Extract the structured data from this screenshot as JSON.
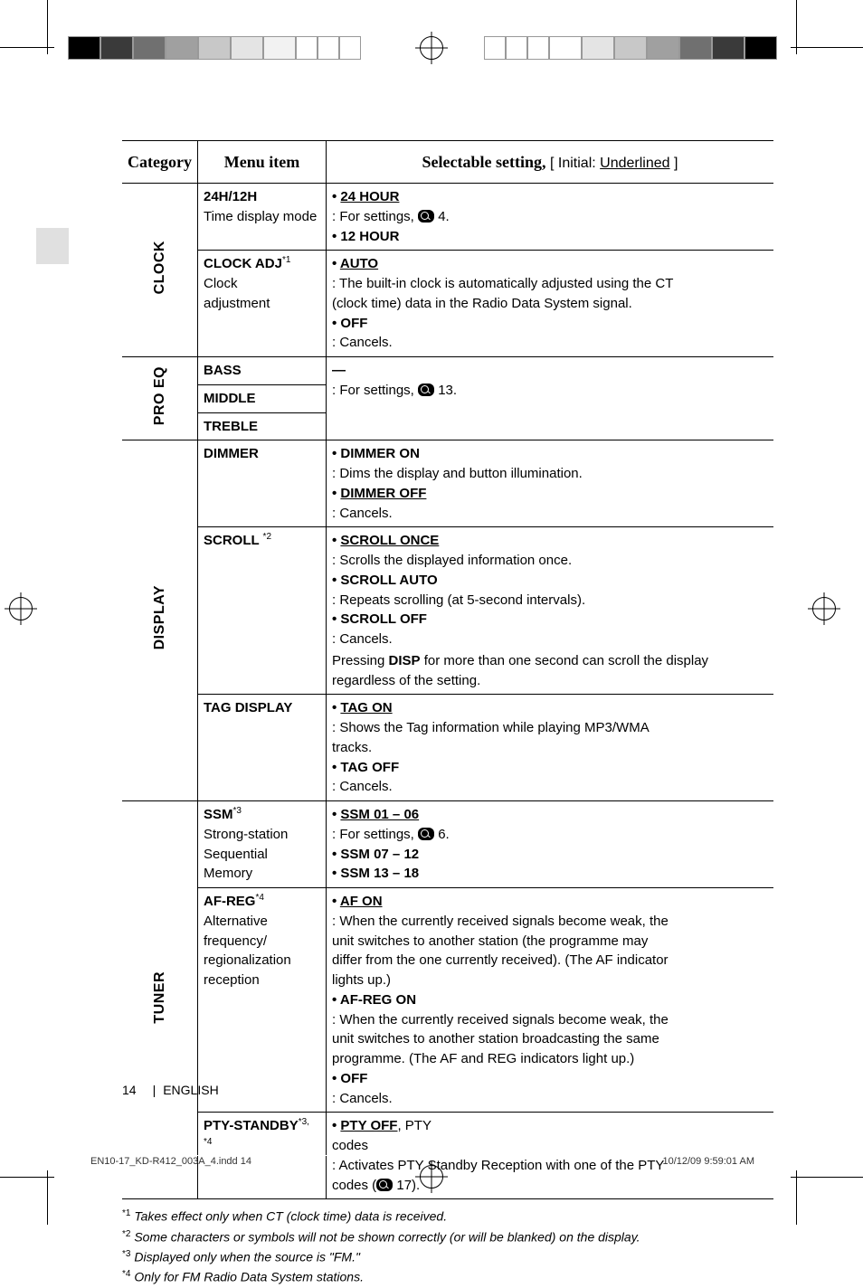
{
  "header": {
    "cat": "Category",
    "item": "Menu item",
    "setting_a": "Selectable setting, ",
    "setting_b": "[ Initial: ",
    "setting_c": "Underlined",
    "setting_d": " ]"
  },
  "clock": {
    "cat": "CLOCK",
    "r1": {
      "title": "24H/12H",
      "sub": "Time display mode",
      "opt1": "24 HOUR",
      "opt2": "12 HOUR",
      "desc1a": ":  For settings, ",
      "desc1b": " 4."
    },
    "r2": {
      "title": "CLOCK ADJ",
      "sup": "*1",
      "sub1": "Clock",
      "sub2": "adjustment",
      "opt1": "AUTO",
      "opt2": "OFF",
      "desc1": ":  The built-in clock is automatically adjusted using the CT (clock time) data in the Radio Data System signal.",
      "desc2": ":  Cancels."
    }
  },
  "proeq": {
    "cat": "PRO EQ",
    "r1": "BASS",
    "r2": "MIDDLE",
    "r3": "TREBLE",
    "dash": "—",
    "desc_a": ":  For settings, ",
    "desc_b": " 13."
  },
  "display": {
    "cat": "DISPLAY",
    "dimmer": {
      "title": "DIMMER",
      "opt1": "DIMMER ON",
      "opt2": "DIMMER OFF",
      "d1": ":  Dims the display and button illumination.",
      "d2": ":  Cancels."
    },
    "scroll": {
      "title": "SCROLL ",
      "sup": "*2",
      "opt1": "SCROLL ONCE",
      "d1": ":  Scrolls the displayed information once.",
      "opt2": "SCROLL AUTO",
      "d2": ":  Repeats scrolling (at 5-second intervals).",
      "opt3": "SCROLL OFF",
      "d3": ":  Cancels.",
      "note_a": "Pressing ",
      "note_b": "DISP",
      "note_c": " for more than one second can scroll the display regardless of the setting."
    },
    "tag": {
      "title": "TAG DISPLAY",
      "opt1": "TAG ON",
      "d1": ":  Shows the Tag information while playing MP3/WMA tracks.",
      "opt2": "TAG OFF",
      "d2": ":  Cancels."
    }
  },
  "tuner": {
    "cat": "TUNER",
    "ssm": {
      "title": "SSM",
      "sup": "*3",
      "sub": "Strong-station Sequential Memory",
      "opt1": "SSM 01 – 06",
      "opt2": "SSM 07 – 12",
      "opt3": "SSM 13 – 18",
      "desc_a": ":  For settings, ",
      "desc_b": " 6."
    },
    "af": {
      "title": "AF-REG",
      "sup": "*4",
      "sub": "Alternative frequency/ regionalization reception",
      "opt1": "AF ON",
      "d1": ":  When the currently received signals become weak, the unit switches to another station (the programme may differ from the one currently received). (The AF indicator lights up.)",
      "opt2": "AF-REG ON",
      "d2": ":  When the currently received signals become weak, the unit switches to another station broadcasting the same programme. (The AF and REG indicators light up.)",
      "opt3": "OFF",
      "d3": ":  Cancels."
    },
    "pty": {
      "title": "PTY-STANDBY",
      "sup": "*3, *4",
      "opt1": "PTY OFF",
      "opt1b": ", PTY codes",
      "d_a": ":  Activates PTY Standby Reception with one of the PTY codes (",
      "d_b": " 17)."
    }
  },
  "footnotes": {
    "f1": "Takes effect only when CT (clock time) data is received.",
    "f2": "Some characters or symbols will not be shown correctly (or will be blanked) on the display.",
    "f3": "Displayed only when the source is \"FM.\"",
    "f4": "Only for FM Radio Data System stations."
  },
  "pagenum": {
    "n": "14",
    "lang": "ENGLISH"
  },
  "printline": {
    "file": "EN10-17_KD-R412_003A_4.indd   14",
    "ts": "10/12/09   9:59:01 AM"
  },
  "swatches_left": [
    "#000000",
    "#3a3a3a",
    "#707070",
    "#a0a0a0",
    "#c8c8c8",
    "#e4e4e4",
    "#f2f2f2",
    "#ffffff",
    "#ffffff",
    "#ffffff"
  ],
  "swatches_right": [
    "#000000",
    "#3a3a3a",
    "#707070",
    "#a0a0a0",
    "#c8c8c8",
    "#e4e4e4",
    "#ffffff",
    "#ffffff",
    "#ffffff",
    "#ffffff"
  ]
}
